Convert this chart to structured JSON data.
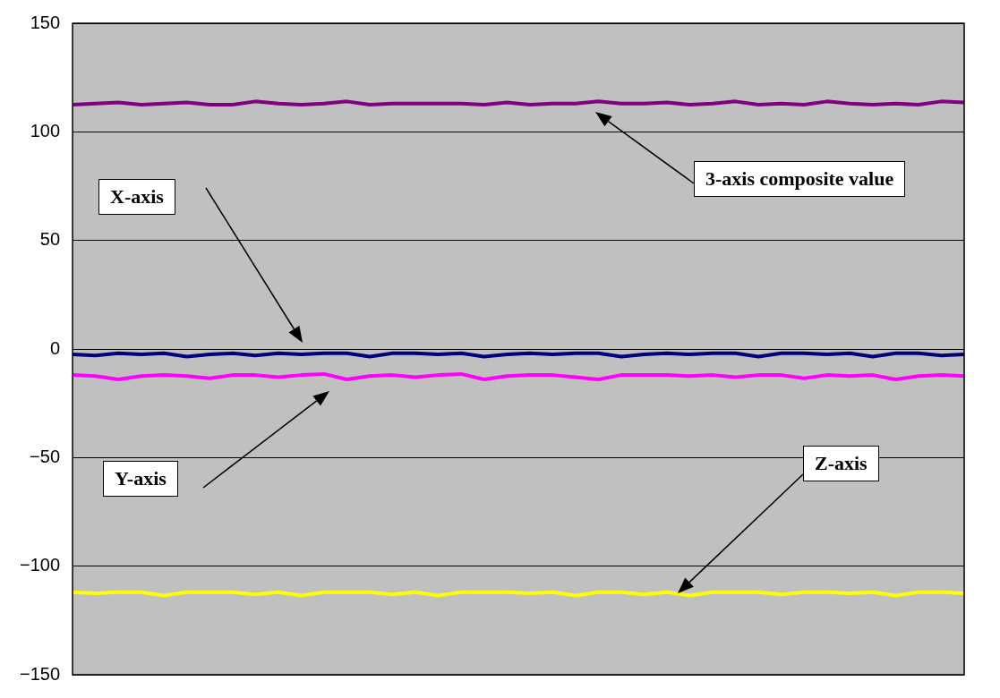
{
  "chart_data": {
    "type": "line",
    "categories": [
      null,
      null,
      null,
      null,
      null,
      null,
      null,
      null,
      null,
      null,
      null,
      null,
      null,
      null,
      null,
      null,
      null,
      null,
      null,
      null,
      null,
      null,
      null,
      null,
      null,
      null,
      null,
      null,
      null,
      null,
      null,
      null,
      null,
      null,
      null,
      null,
      null,
      null,
      null,
      null
    ],
    "series": [
      {
        "color": "#800080",
        "values": [
          112.5,
          113,
          113.5,
          112.5,
          113,
          113.5,
          112.5,
          112.5,
          114,
          113,
          112.5,
          113,
          114,
          112.5,
          113,
          113,
          113,
          113,
          112.5,
          113.5,
          112.5,
          113,
          113,
          114,
          113,
          113,
          113.5,
          112.5,
          113,
          114,
          112.5,
          113,
          112.5,
          114,
          113,
          112.5,
          113,
          112.5,
          114,
          113.5
        ]
      },
      {
        "color": "#000080",
        "values": [
          -2.5,
          -3,
          -2,
          -2.5,
          -2,
          -3.5,
          -2.5,
          -2,
          -3,
          -2,
          -2.5,
          -2,
          -2,
          -3.5,
          -2,
          -2,
          -2.5,
          -2,
          -3.5,
          -2.5,
          -2,
          -2.5,
          -2,
          -2,
          -3.5,
          -2.5,
          -2,
          -2.5,
          -2,
          -2,
          -3.5,
          -2,
          -2,
          -2.5,
          -2,
          -3.5,
          -2,
          -2,
          -3,
          -2.5
        ]
      },
      {
        "color": "#ff00ff",
        "values": [
          -12,
          -12.5,
          -14,
          -12.5,
          -12,
          -12.5,
          -13.5,
          -12,
          -12,
          -13,
          -12,
          -11.5,
          -14,
          -12.5,
          -12,
          -13,
          -12,
          -11.5,
          -14,
          -12.5,
          -12,
          -12,
          -13,
          -14,
          -12,
          -12,
          -12,
          -12.5,
          -12,
          -13,
          -12,
          -12,
          -13.5,
          -12,
          -12.5,
          -12,
          -14,
          -12.5,
          -12,
          -12.5
        ]
      },
      {
        "color": "#ffff00",
        "values": [
          -112,
          -112.5,
          -112,
          -112,
          -113.5,
          -112,
          -112,
          -112,
          -113,
          -112,
          -113.5,
          -112,
          -112,
          -112,
          -113,
          -112,
          -113.5,
          -112,
          -112,
          -112,
          -112.5,
          -112,
          -113.5,
          -112,
          -112,
          -113,
          -112,
          -113.5,
          -112,
          -112,
          -112,
          -113,
          -112,
          -112,
          -112.5,
          -112,
          -113.5,
          -112,
          -112,
          -112.5
        ]
      }
    ],
    "ylim": [
      -150,
      150
    ],
    "yticks": [
      -150,
      -100,
      -50,
      0,
      50,
      100,
      150
    ],
    "grid": "y",
    "legend": false,
    "tick_labels": "y",
    "marker": "none",
    "line_style": "solid",
    "annotations": [
      "3-axis composite value",
      "X-axis",
      "Y-axis",
      "Z-axis"
    ]
  }
}
